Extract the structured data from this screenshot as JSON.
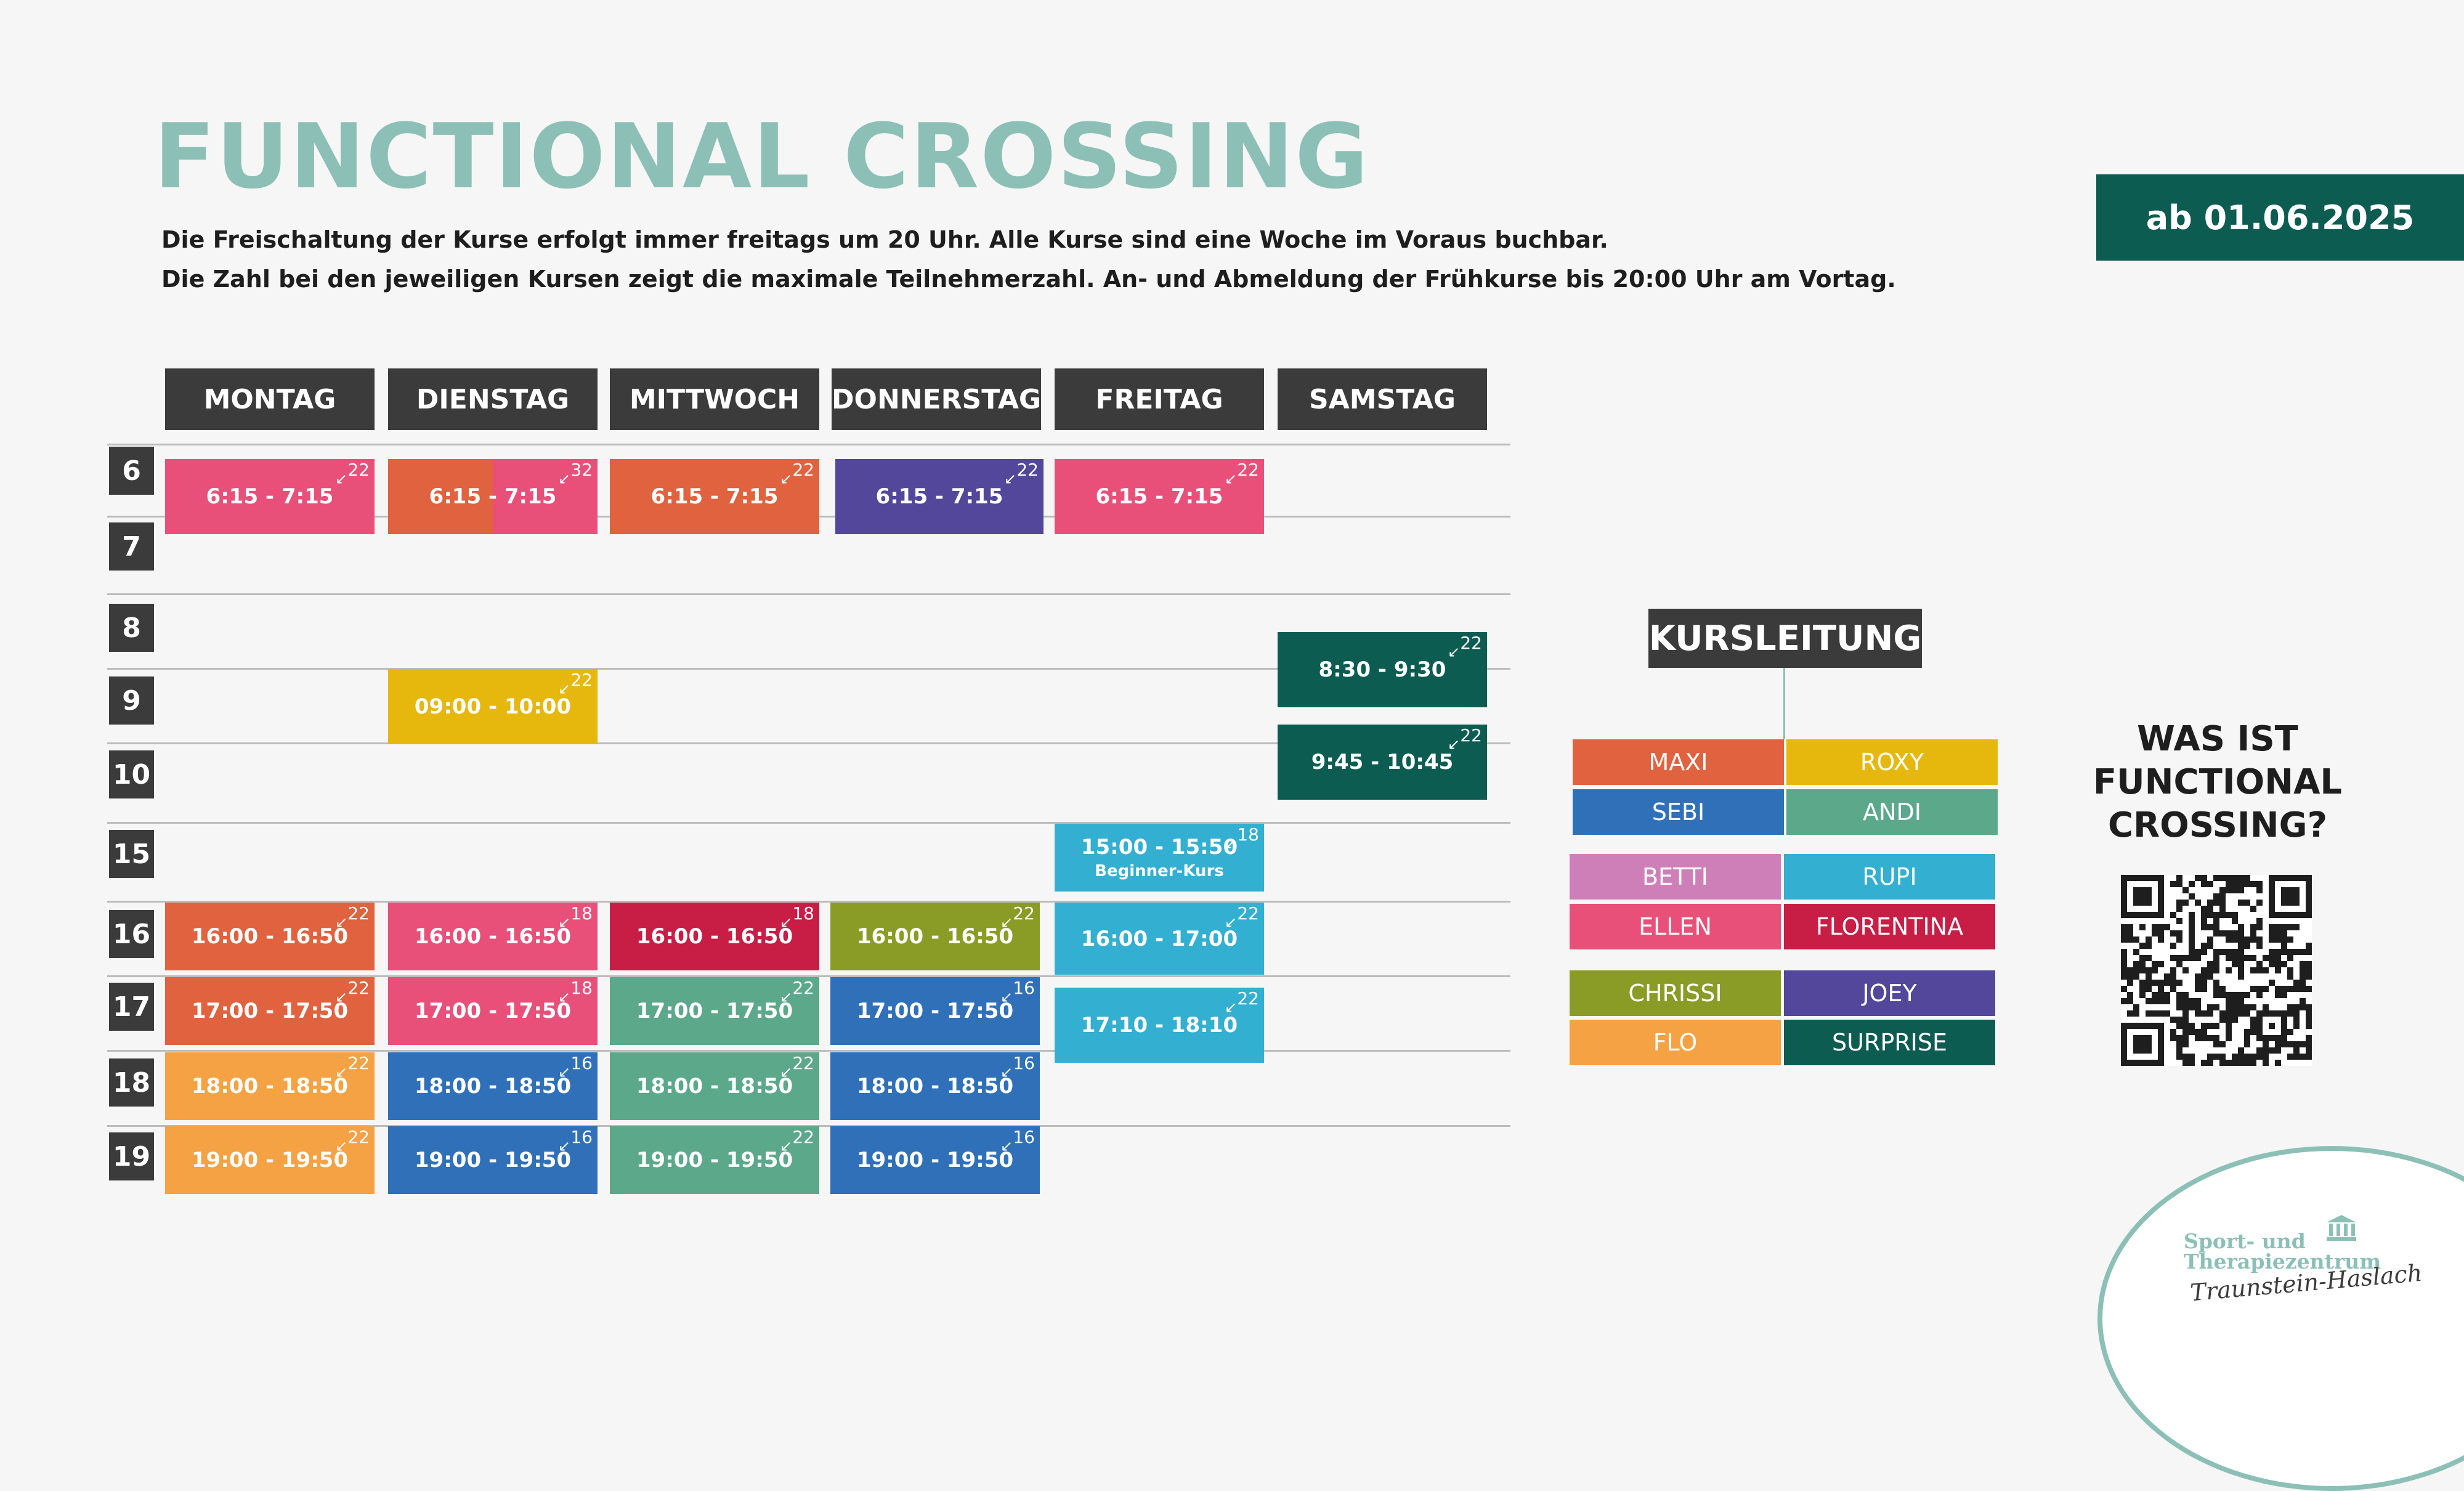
{
  "header": {
    "title": "FUNCTIONAL CROSSING",
    "info_line_1": "Die Freischaltung der Kurse erfolgt immer freitags um 20 Uhr. Alle Kurse sind eine Woche im Voraus buchbar.",
    "info_line_2": "Die Zahl bei den jeweiligen Kursen zeigt die maximale Teilnehmerzahl. An- und Abmeldung der Frühkurse bis 20:00 Uhr am Vortag.",
    "date_badge": "ab 01.06.2025"
  },
  "schedule": {
    "days": [
      "MONTAG",
      "DIENSTAG",
      "MITTWOCH",
      "DONNERSTAG",
      "FREITAG",
      "SAMSTAG"
    ],
    "hours": [
      "6",
      "7",
      "8",
      "9",
      "10",
      "15",
      "16",
      "17",
      "18",
      "19"
    ],
    "sessions": [
      {
        "day": 0,
        "time": "6:15 - 7:15",
        "capacity": "22",
        "trainer": "ELLEN",
        "color": "#e8507a"
      },
      {
        "day": 1,
        "time": "6:15 - 7:15",
        "capacity": "32",
        "trainer": "MAXI + ELLEN",
        "color": "#e0623f",
        "color2": "#e8507a"
      },
      {
        "day": 2,
        "time": "6:15 - 7:15",
        "capacity": "22",
        "trainer": "MAXI",
        "color": "#e0623f"
      },
      {
        "day": 3,
        "time": "6:15 - 7:15",
        "capacity": "22",
        "trainer": "JOEY",
        "color": "#52479a"
      },
      {
        "day": 4,
        "time": "6:15 - 7:15",
        "capacity": "22",
        "trainer": "ELLEN",
        "color": "#e8507a"
      },
      {
        "day": 5,
        "time": "8:30 - 9:30",
        "capacity": "22",
        "trainer": "SURPRISE",
        "color": "#0d5c52"
      },
      {
        "day": 1,
        "time": "09:00 - 10:00",
        "capacity": "22",
        "trainer": "ROXY",
        "color": "#e6b80e"
      },
      {
        "day": 5,
        "time": "9:45 - 10:45",
        "capacity": "22",
        "trainer": "SURPRISE",
        "color": "#0d5c52"
      },
      {
        "day": 4,
        "time": "15:00 - 15:50",
        "subtitle": "Beginner-Kurs",
        "capacity": "18",
        "trainer": "RUPI",
        "color": "#33afd1"
      },
      {
        "day": 0,
        "time": "16:00 - 16:50",
        "capacity": "22",
        "trainer": "MAXI",
        "color": "#e0623f"
      },
      {
        "day": 1,
        "time": "16:00 - 16:50",
        "capacity": "18",
        "trainer": "ELLEN",
        "color": "#e8507a"
      },
      {
        "day": 2,
        "time": "16:00 - 16:50",
        "capacity": "18",
        "trainer": "FLORENTINA",
        "color": "#c81d45"
      },
      {
        "day": 3,
        "time": "16:00 - 16:50",
        "capacity": "22",
        "trainer": "CHRISSI",
        "color": "#8b9c26"
      },
      {
        "day": 4,
        "time": "16:00 - 17:00",
        "capacity": "22",
        "trainer": "RUPI",
        "color": "#33afd1"
      },
      {
        "day": 0,
        "time": "17:00 - 17:50",
        "capacity": "22",
        "trainer": "MAXI",
        "color": "#e0623f"
      },
      {
        "day": 1,
        "time": "17:00 - 17:50",
        "capacity": "18",
        "trainer": "ELLEN",
        "color": "#e8507a"
      },
      {
        "day": 2,
        "time": "17:00 - 17:50",
        "capacity": "22",
        "trainer": "ANDI",
        "color": "#5ba88a"
      },
      {
        "day": 3,
        "time": "17:00 - 17:50",
        "capacity": "16",
        "trainer": "SEBI",
        "color": "#2f70b9"
      },
      {
        "day": 4,
        "time": "17:10 - 18:10",
        "capacity": "22",
        "trainer": "RUPI",
        "color": "#33afd1"
      },
      {
        "day": 0,
        "time": "18:00 - 18:50",
        "capacity": "22",
        "trainer": "FLO",
        "color": "#f4a243"
      },
      {
        "day": 1,
        "time": "18:00 - 18:50",
        "capacity": "16",
        "trainer": "SEBI",
        "color": "#2f70b9"
      },
      {
        "day": 2,
        "time": "18:00 - 18:50",
        "capacity": "22",
        "trainer": "ANDI",
        "color": "#5ba88a"
      },
      {
        "day": 3,
        "time": "18:00 - 18:50",
        "capacity": "16",
        "trainer": "SEBI",
        "color": "#2f70b9"
      },
      {
        "day": 0,
        "time": "19:00 - 19:50",
        "capacity": "22",
        "trainer": "FLO",
        "color": "#f4a243"
      },
      {
        "day": 1,
        "time": "19:00 - 19:50",
        "capacity": "16",
        "trainer": "SEBI",
        "color": "#2f70b9"
      },
      {
        "day": 2,
        "time": "19:00 - 19:50",
        "capacity": "22",
        "trainer": "ANDI",
        "color": "#5ba88a"
      },
      {
        "day": 3,
        "time": "19:00 - 19:50",
        "capacity": "16",
        "trainer": "SEBI",
        "color": "#2f70b9"
      }
    ]
  },
  "kursleitung": {
    "title": "KURSLEITUNG",
    "trainers": [
      {
        "name": "MAXI",
        "color": "#e0623f"
      },
      {
        "name": "ROXY",
        "color": "#e6b80e"
      },
      {
        "name": "SEBI",
        "color": "#2f70b9"
      },
      {
        "name": "ANDI",
        "color": "#5ba88a"
      },
      {
        "name": "BETTI",
        "color": "#cf7fb8"
      },
      {
        "name": "RUPI",
        "color": "#33afd1"
      },
      {
        "name": "ELLEN",
        "color": "#e8507a"
      },
      {
        "name": "FLORENTINA",
        "color": "#c81d45"
      },
      {
        "name": "CHRISSI",
        "color": "#8b9c26"
      },
      {
        "name": "JOEY",
        "color": "#52479a"
      },
      {
        "name": "FLO",
        "color": "#f4a243"
      },
      {
        "name": "SURPRISE",
        "color": "#0d5c52"
      }
    ]
  },
  "promo": {
    "question_line_1": "WAS IST",
    "question_line_2": "FUNCTIONAL",
    "question_line_3": "CROSSING?",
    "qr_icon": "qr-code-icon"
  },
  "logo": {
    "line_1": "Sport- und",
    "line_2": "Therapiezentrum",
    "line_3": "Traunstein-Haslach",
    "icon": "building-icon"
  }
}
